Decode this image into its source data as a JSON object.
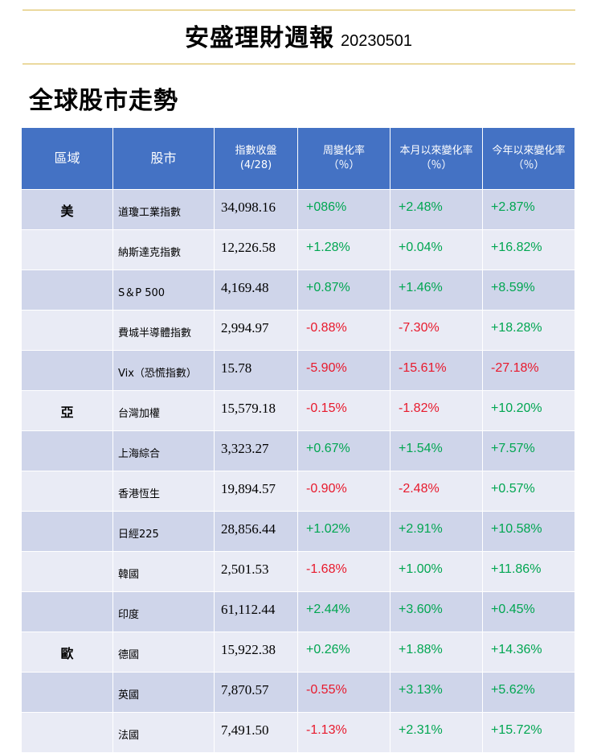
{
  "report": {
    "title": "安盛理財週報",
    "date": "20230501",
    "section_title": "全球股市走勢"
  },
  "colors": {
    "header_bg": "#4472c4",
    "row_dark": "#cfd5ea",
    "row_light": "#e9ebf5",
    "positive": "#00a651",
    "negative": "#e8192c",
    "rule": "#d9b84a"
  },
  "table": {
    "headers": {
      "region": "區域",
      "market": "股市",
      "close_line1": "指數收盤",
      "close_line2": "(4/28)",
      "week_line1": "周變化率",
      "week_line2": "（％）",
      "month_line1": "本月以來變化率",
      "month_line2": "（％）",
      "ytd_line1": "今年以來變化率",
      "ytd_line2": "（％）"
    },
    "rows": [
      {
        "region": "美",
        "name": "道瓊工業指數",
        "close": "34,098.16",
        "week": "+086%",
        "month": "+2.48%",
        "ytd": "+2.87%"
      },
      {
        "region": "",
        "name": "納斯達克指數",
        "close": "12,226.58",
        "week": "+1.28%",
        "month": "+0.04%",
        "ytd": "+16.82%"
      },
      {
        "region": "",
        "name": "S＆P 500",
        "close": "4,169.48",
        "week": "+0.87%",
        "month": "+1.46%",
        "ytd": "+8.59%"
      },
      {
        "region": "",
        "name": "費城半導體指數",
        "close": "2,994.97",
        "week": "-0.88%",
        "month": "-7.30%",
        "ytd": "+18.28%"
      },
      {
        "region": "",
        "name": "Vix（恐慌指數）",
        "close": "15.78",
        "week": "-5.90%",
        "month": "-15.61%",
        "ytd": "-27.18%"
      },
      {
        "region": "亞",
        "name": "台灣加權",
        "close": "15,579.18",
        "week": "-0.15%",
        "month": "-1.82%",
        "ytd": "+10.20%"
      },
      {
        "region": "",
        "name": "上海綜合",
        "close": "3,323.27",
        "week": "+0.67%",
        "month": "+1.54%",
        "ytd": "+7.57%"
      },
      {
        "region": "",
        "name": "香港恆生",
        "close": "19,894.57",
        "week": "-0.90%",
        "month": "-2.48%",
        "ytd": "+0.57%"
      },
      {
        "region": "",
        "name": "日經225",
        "close": "28,856.44",
        "week": "+1.02%",
        "month": "+2.91%",
        "ytd": "+10.58%"
      },
      {
        "region": "",
        "name": "韓國",
        "close": "2,501.53",
        "week": "-1.68%",
        "month": "+1.00%",
        "ytd": "+11.86%"
      },
      {
        "region": "",
        "name": "印度",
        "close": "61,112.44",
        "week": "+2.44%",
        "month": "+3.60%",
        "ytd": "+0.45%"
      },
      {
        "region": "歐",
        "name": "德國",
        "close": "15,922.38",
        "week": "+0.26%",
        "month": "+1.88%",
        "ytd": "+14.36%"
      },
      {
        "region": "",
        "name": "英國",
        "close": "7,870.57",
        "week": "-0.55%",
        "month": "+3.13%",
        "ytd": "+5.62%"
      },
      {
        "region": "",
        "name": "法國",
        "close": "7,491.50",
        "week": "-1.13%",
        "month": "+2.31%",
        "ytd": "+15.72%"
      }
    ]
  }
}
